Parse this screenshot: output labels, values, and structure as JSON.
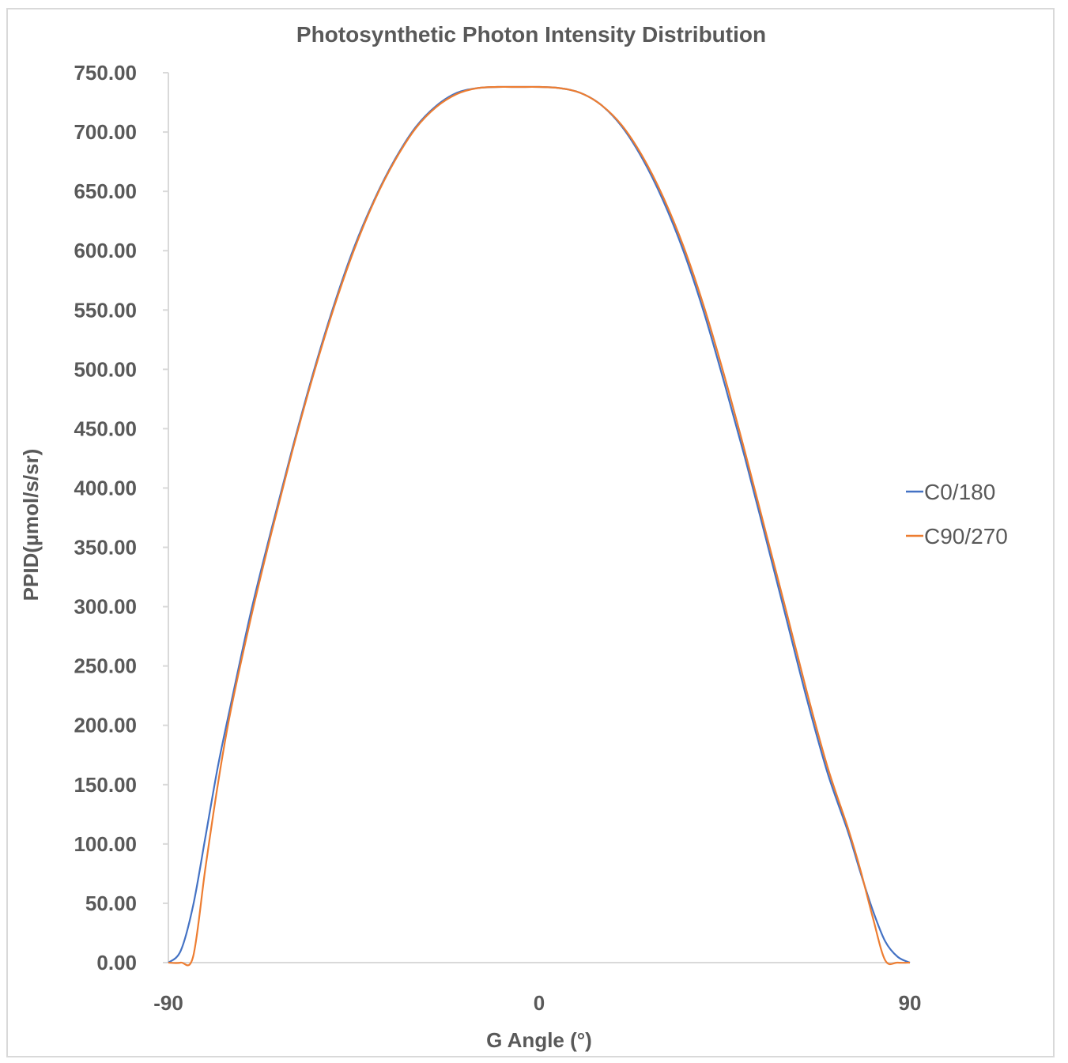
{
  "chart_data": {
    "type": "line",
    "title": "Photosynthetic Photon Intensity Distribution",
    "xlabel": "G Angle (°)",
    "ylabel": "PPID(µmol/s/sr)",
    "xlim": [
      -90,
      90
    ],
    "ylim": [
      0,
      750
    ],
    "x_ticks": [
      "-90",
      "0",
      "90"
    ],
    "x_tick_values": [
      -90,
      0,
      90
    ],
    "y_ticks": [
      "0.00",
      "50.00",
      "100.00",
      "150.00",
      "200.00",
      "250.00",
      "300.00",
      "350.00",
      "400.00",
      "450.00",
      "500.00",
      "550.00",
      "600.00",
      "650.00",
      "700.00",
      "750.00"
    ],
    "y_tick_values": [
      0,
      50,
      100,
      150,
      200,
      250,
      300,
      350,
      400,
      450,
      500,
      550,
      600,
      650,
      700,
      750
    ],
    "legend_position": "right",
    "grid": false,
    "series": [
      {
        "name": "C0/180",
        "color": "#4472c4",
        "x": [
          -90,
          -87,
          -84,
          -81,
          -78,
          -75,
          -70,
          -65,
          -60,
          -55,
          -50,
          -45,
          -40,
          -35,
          -30,
          -25,
          -20,
          -15,
          -10,
          -5,
          0,
          5,
          10,
          15,
          20,
          25,
          30,
          35,
          40,
          45,
          50,
          55,
          60,
          65,
          70,
          75,
          78,
          81,
          84,
          87,
          90
        ],
        "y": [
          0,
          10,
          48,
          106,
          165,
          215,
          295,
          365,
          432,
          495,
          552,
          602,
          643,
          677,
          704,
          722,
          733,
          737,
          738,
          738,
          738,
          737,
          733,
          723,
          705,
          678,
          643,
          600,
          548,
          488,
          425,
          358,
          290,
          222,
          160,
          110,
          76,
          44,
          18,
          5,
          0
        ]
      },
      {
        "name": "C90/270",
        "color": "#ed7d31",
        "x": [
          -90,
          -87,
          -84,
          -81,
          -78,
          -75,
          -70,
          -65,
          -60,
          -55,
          -50,
          -45,
          -40,
          -35,
          -30,
          -25,
          -20,
          -15,
          -10,
          -5,
          0,
          5,
          10,
          15,
          20,
          25,
          30,
          35,
          40,
          45,
          50,
          55,
          60,
          65,
          70,
          75,
          78,
          81,
          84,
          87,
          90
        ],
        "y": [
          0,
          0,
          5,
          80,
          150,
          210,
          290,
          362,
          430,
          493,
          550,
          600,
          642,
          676,
          703,
          721,
          732,
          737,
          738,
          738,
          738,
          737,
          733,
          723,
          706,
          680,
          646,
          604,
          553,
          494,
          430,
          363,
          296,
          228,
          165,
          113,
          78,
          38,
          2,
          0,
          0
        ]
      }
    ]
  }
}
